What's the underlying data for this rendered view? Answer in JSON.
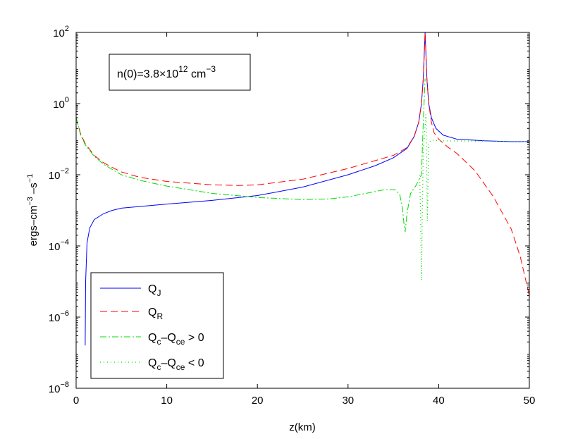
{
  "chart_data": {
    "type": "line",
    "xlabel": "z(km)",
    "ylabel": {
      "base": "ergs–cm",
      "exp1": "−3",
      "mid": " –s",
      "exp2": "−1"
    },
    "x_ticks": [
      "0",
      "10",
      "20",
      "30",
      "40",
      "50"
    ],
    "x_tick_values": [
      0,
      10,
      20,
      30,
      40,
      50
    ],
    "y_ticks": [
      {
        "base": "10",
        "exp": "−8",
        "value": -8
      },
      {
        "base": "10",
        "exp": "−6",
        "value": -6
      },
      {
        "base": "10",
        "exp": "−4",
        "value": -4
      },
      {
        "base": "10",
        "exp": "−2",
        "value": -2
      },
      {
        "base": "10",
        "exp": "0",
        "value": 0
      },
      {
        "base": "10",
        "exp": "2",
        "value": 2
      }
    ],
    "xlim": [
      0,
      50
    ],
    "ylim": [
      1e-08,
      100
    ],
    "yscale": "log",
    "grid": false,
    "annotation": {
      "pre": "n(0)=3.8×10",
      "exp": "12",
      "post": " cm",
      "exp2": "−3"
    },
    "legend_position": "lower-left",
    "series": [
      {
        "name": "Q_J",
        "label": {
          "main": "Q",
          "sub": "J",
          "rest": ""
        },
        "color": "#0000ff",
        "dash": "solid",
        "points": [
          [
            1.0,
            1.6e-07
          ],
          [
            1.05,
            1e-05
          ],
          [
            1.2,
            0.00012
          ],
          [
            1.5,
            0.00032
          ],
          [
            2,
            0.00055
          ],
          [
            3,
            0.0008
          ],
          [
            4,
            0.001
          ],
          [
            5,
            0.00115
          ],
          [
            10,
            0.0015
          ],
          [
            15,
            0.0019
          ],
          [
            20,
            0.0026
          ],
          [
            25,
            0.0045
          ],
          [
            30,
            0.01
          ],
          [
            33,
            0.018
          ],
          [
            35,
            0.03
          ],
          [
            36.5,
            0.055
          ],
          [
            37.3,
            0.12
          ],
          [
            37.8,
            0.3
          ],
          [
            38.1,
            1.0
          ],
          [
            38.3,
            5
          ],
          [
            38.5,
            100
          ],
          [
            38.7,
            5
          ],
          [
            38.9,
            1.0
          ],
          [
            39.2,
            0.4
          ],
          [
            39.7,
            0.2
          ],
          [
            40.5,
            0.13
          ],
          [
            42,
            0.1
          ],
          [
            45,
            0.09
          ],
          [
            48,
            0.085
          ],
          [
            50,
            0.085
          ]
        ]
      },
      {
        "name": "Q_R",
        "label": {
          "main": "Q",
          "sub": "R",
          "rest": ""
        },
        "color": "#ff0000",
        "dash": "10,5",
        "points": [
          [
            0,
            0.4
          ],
          [
            0.5,
            0.14
          ],
          [
            1,
            0.075
          ],
          [
            2,
            0.035
          ],
          [
            3,
            0.022
          ],
          [
            4,
            0.016
          ],
          [
            5,
            0.012
          ],
          [
            7,
            0.0085
          ],
          [
            10,
            0.0065
          ],
          [
            15,
            0.0052
          ],
          [
            18,
            0.005
          ],
          [
            20,
            0.0052
          ],
          [
            25,
            0.0075
          ],
          [
            30,
            0.015
          ],
          [
            33,
            0.025
          ],
          [
            35,
            0.035
          ],
          [
            36.5,
            0.058
          ],
          [
            37.3,
            0.12
          ],
          [
            37.8,
            0.3
          ],
          [
            38.1,
            1.0
          ],
          [
            38.3,
            5
          ],
          [
            38.5,
            100
          ],
          [
            38.7,
            5
          ],
          [
            38.9,
            1.0
          ],
          [
            39.2,
            0.3
          ],
          [
            39.5,
            0.15
          ],
          [
            40,
            0.1
          ],
          [
            41,
            0.06
          ],
          [
            42,
            0.04
          ],
          [
            44,
            0.013
          ],
          [
            46,
            0.0025
          ],
          [
            48,
            0.0003
          ],
          [
            49,
            5e-05
          ],
          [
            50,
            4e-06
          ]
        ]
      },
      {
        "name": "Q_c-Q_ce > 0",
        "label": {
          "main": "Q",
          "sub": "c",
          "rest": "–Q",
          "sub2": "ce",
          "tail": " > 0"
        },
        "color": "#00dd00",
        "dash": "9,3,2,3",
        "points": [
          [
            0,
            0.4
          ],
          [
            0.5,
            0.13
          ],
          [
            1,
            0.07
          ],
          [
            2,
            0.033
          ],
          [
            3,
            0.02
          ],
          [
            4,
            0.014
          ],
          [
            5,
            0.01
          ],
          [
            7,
            0.007
          ],
          [
            10,
            0.0048
          ],
          [
            15,
            0.003
          ],
          [
            20,
            0.0023
          ],
          [
            25,
            0.002
          ],
          [
            28,
            0.0021
          ],
          [
            30,
            0.0024
          ],
          [
            32,
            0.003
          ],
          [
            34,
            0.0038
          ],
          [
            35.2,
            0.0038
          ],
          [
            35.7,
            0.0028
          ],
          [
            36.0,
            0.0012
          ],
          [
            36.2,
            0.00035
          ],
          [
            36.3,
            0.00025
          ],
          [
            36.5,
            0.0008
          ],
          [
            36.9,
            0.003
          ],
          [
            37.5,
            0.005
          ],
          [
            37.9,
            0.008
          ],
          [
            38.1,
            0.01
          ],
          [
            38.3,
            0.3
          ],
          [
            38.5,
            5
          ]
        ]
      },
      {
        "name": "Q_c-Q_ce < 0",
        "label": {
          "main": "Q",
          "sub": "c",
          "rest": "–Q",
          "sub2": "ce",
          "tail": " < 0"
        },
        "color": "#00dd00",
        "dash": "1,4",
        "points": [
          [
            37.9,
            0.01
          ],
          [
            38.0,
            0.001
          ],
          [
            38.1,
            1.1e-05
          ],
          [
            38.2,
            0.001
          ],
          [
            38.3,
            0.05
          ],
          [
            38.6,
            0.5
          ],
          [
            38.75,
            0.0005
          ],
          [
            38.9,
            0.08
          ],
          [
            39.2,
            0.095
          ],
          [
            40,
            0.09
          ],
          [
            45,
            0.088
          ],
          [
            50,
            0.085
          ]
        ]
      }
    ]
  }
}
